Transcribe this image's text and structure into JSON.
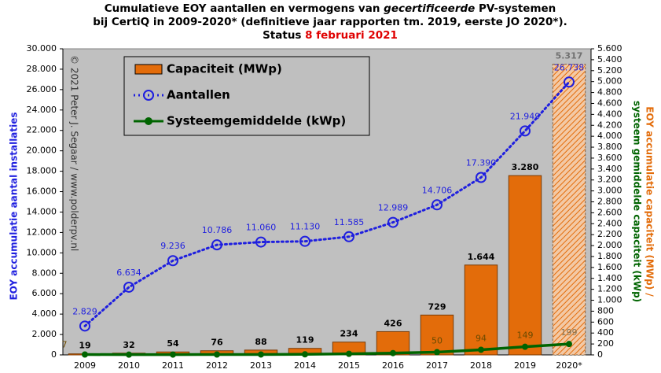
{
  "chart_data": {
    "type": "bar_line",
    "title": {
      "line1": [
        "Cumulatieve EOY aantallen en vermogens van ",
        "gecertificeerde",
        " PV-systemen"
      ],
      "line2": "bij CertiQ in 2009-2020* (definitieve jaar rapporten tm. 2019, eerste JO 2020*).",
      "line3": "Status",
      "date": "8 februari 2021"
    },
    "copyright": "© 2021 Peter J. Segaar / www.polderpv.nl",
    "ylabel": "EOY accumulatie aantal installaties",
    "y2label": [
      "EOY accumulatie capaciteit (MWp) /",
      "systeem gemiddelde capaciteit (kWp)"
    ],
    "categories": [
      "2009",
      "2010",
      "2011",
      "2012",
      "2013",
      "2014",
      "2015",
      "2016",
      "2017",
      "2018",
      "2019",
      "2020*"
    ],
    "series": [
      {
        "name": "Capaciteit (MWp)",
        "kind": "bar",
        "axis": "y2",
        "color": "#e36c0a",
        "patterns": [
          null,
          null,
          null,
          null,
          null,
          null,
          null,
          null,
          null,
          null,
          null,
          "hatched"
        ],
        "values": [
          19,
          32,
          54,
          76,
          88,
          119,
          234,
          426,
          729,
          1644,
          3280,
          5317
        ],
        "value_labels": [
          "19",
          "32",
          "54",
          "76",
          "88",
          "119",
          "234",
          "426",
          "729",
          "1.644",
          "3.280",
          "5.317"
        ]
      },
      {
        "name": "Aantallen",
        "kind": "line",
        "axis": "y",
        "color": "#1f1fdf",
        "values": [
          2829,
          6634,
          9236,
          10786,
          11060,
          11130,
          11585,
          12989,
          14706,
          17390,
          21949,
          26738
        ],
        "value_labels": [
          "2.829",
          "6.634",
          "9.236",
          "10.786",
          "11.060",
          "11.130",
          "11.585",
          "12.989",
          "14.706",
          "17.390",
          "21.949",
          "26.738"
        ]
      },
      {
        "name": "Systeemgemiddelde (kWp)",
        "kind": "line",
        "axis": "y2",
        "color": "#006400",
        "values": [
          7,
          5,
          6,
          7,
          8,
          11,
          20,
          33,
          50,
          94,
          149,
          199
        ],
        "value_labels": [
          "7",
          null,
          null,
          null,
          null,
          null,
          null,
          null,
          "50",
          "94",
          "149",
          "199"
        ]
      }
    ],
    "ylim": [
      0,
      30000
    ],
    "yticks": [
      0,
      {
        "value": 2000,
        "label": "2.000"
      },
      {
        "value": 4000,
        "label": "4.000"
      },
      {
        "value": 6000,
        "label": "6.000"
      },
      {
        "value": 8000,
        "label": "8.000"
      },
      {
        "value": 10000,
        "label": "10.000"
      },
      {
        "value": 12000,
        "label": "12.000"
      },
      {
        "value": 14000,
        "label": "14.000"
      },
      {
        "value": 16000,
        "label": "16.000"
      },
      {
        "value": 18000,
        "label": "18.000"
      },
      {
        "value": 20000,
        "label": "20.000"
      },
      {
        "value": 22000,
        "label": "22.000"
      },
      {
        "value": 24000,
        "label": "24.000"
      },
      {
        "value": 26000,
        "label": "26.000"
      },
      {
        "value": 28000,
        "label": "28.000"
      },
      {
        "value": 30000,
        "label": "30.000"
      }
    ],
    "y2lim": [
      0,
      5600
    ],
    "y2ticks": [
      0,
      200,
      400,
      600,
      800,
      {
        "value": 1000,
        "label": "1.000"
      },
      {
        "value": 1200,
        "label": "1.200"
      },
      {
        "value": 1400,
        "label": "1.400"
      },
      {
        "value": 1600,
        "label": "1.600"
      },
      {
        "value": 1800,
        "label": "1.800"
      },
      {
        "value": 2000,
        "label": "2.000"
      },
      {
        "value": 2200,
        "label": "2.200"
      },
      {
        "value": 2400,
        "label": "2.400"
      },
      {
        "value": 2600,
        "label": "2.600"
      },
      {
        "value": 2800,
        "label": "2.800"
      },
      {
        "value": 3000,
        "label": "3.000"
      },
      {
        "value": 3200,
        "label": "3.200"
      },
      {
        "value": 3400,
        "label": "3.400"
      },
      {
        "value": 3600,
        "label": "3.600"
      },
      {
        "value": 3800,
        "label": "3.800"
      },
      {
        "value": 4000,
        "label": "4.000"
      },
      {
        "value": 4200,
        "label": "4.200"
      },
      {
        "value": 4400,
        "label": "4.400"
      },
      {
        "value": 4600,
        "label": "4.600"
      },
      {
        "value": 4800,
        "label": "4.800"
      },
      {
        "value": 5000,
        "label": "5.000"
      },
      {
        "value": 5200,
        "label": "5.200"
      },
      {
        "value": 5400,
        "label": "5.400"
      },
      {
        "value": 5600,
        "label": "5.600"
      }
    ],
    "legend": "top-left"
  }
}
